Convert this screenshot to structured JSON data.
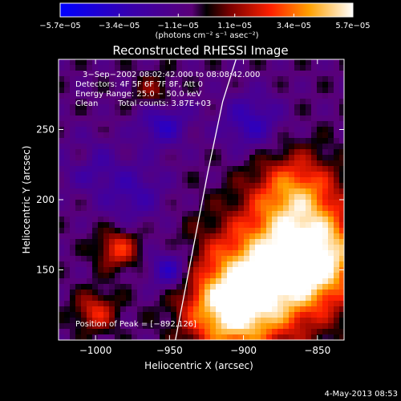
{
  "chart_data": {
    "type": "heatmap",
    "title": "Reconstructed RHESSI Image",
    "xlabel": "Heliocentric X (arcsec)",
    "ylabel": "Heliocentric Y (arcsec)",
    "xlim": [
      -1025,
      -832
    ],
    "ylim": [
      100,
      300
    ],
    "x_ticks": [
      -1000,
      -950,
      -900,
      -850
    ],
    "x_tick_labels": [
      "−1000",
      "−950",
      "−900",
      "−850"
    ],
    "y_ticks": [
      150,
      200,
      250
    ],
    "y_tick_labels": [
      "150",
      "200",
      "250"
    ],
    "colorbar": {
      "range": [
        -5.7e-05,
        5.7e-05
      ],
      "ticks": [
        -5.7e-05,
        -3.4e-05,
        -1.1e-05,
        1.1e-05,
        3.4e-05,
        5.7e-05
      ],
      "tick_labels": [
        "−5.7e−05",
        "−3.4e−05",
        "−1.1e−05",
        "1.1e−05",
        "3.4e−05",
        "5.7e−05"
      ],
      "unit_label": "(photons cm⁻² s⁻¹ asec⁻²)"
    },
    "annotations": {
      "time": "3−Sep−2002 08:02:42.000 to 08:08:42.000",
      "detectors": "Detectors: 4F 5F 6F 7F 8F, Att 0",
      "energy": "Energy Range: 25.0 − 50.0 keV",
      "method": "Clean",
      "counts": "Total counts: 3.87E+03",
      "peak": "Position of Peak = [−892,126]"
    },
    "limb_line": [
      [
        -946,
        100
      ],
      [
        -935,
        160
      ],
      [
        -924,
        220
      ],
      [
        -914,
        270
      ],
      [
        -905,
        300
      ]
    ],
    "peak": [
      -892,
      126
    ],
    "sources": [
      {
        "x": -885,
        "y": 145,
        "sigma": 30,
        "amp": 1.0
      },
      {
        "x": -850,
        "y": 160,
        "sigma": 22,
        "amp": 0.9
      },
      {
        "x": -910,
        "y": 120,
        "sigma": 20,
        "amp": 0.8
      },
      {
        "x": -865,
        "y": 205,
        "sigma": 20,
        "amp": 0.7
      },
      {
        "x": -985,
        "y": 165,
        "sigma": 10,
        "amp": 0.55
      },
      {
        "x": -1010,
        "y": 230,
        "sigma": 9,
        "amp": 0.45
      },
      {
        "x": -1000,
        "y": 120,
        "sigma": 10,
        "amp": 0.5
      },
      {
        "x": -960,
        "y": 275,
        "sigma": 10,
        "amp": 0.35
      },
      {
        "x": -1008,
        "y": 228,
        "sigma": 12,
        "amp": -0.55
      },
      {
        "x": -955,
        "y": 255,
        "sigma": 12,
        "amp": -0.5
      },
      {
        "x": -895,
        "y": 255,
        "sigma": 14,
        "amp": -0.45
      },
      {
        "x": -950,
        "y": 150,
        "sigma": 10,
        "amp": -0.55
      },
      {
        "x": -975,
        "y": 205,
        "sigma": 16,
        "amp": -0.35
      }
    ]
  },
  "footer": {
    "timestamp": "4-May-2013 08:53"
  }
}
